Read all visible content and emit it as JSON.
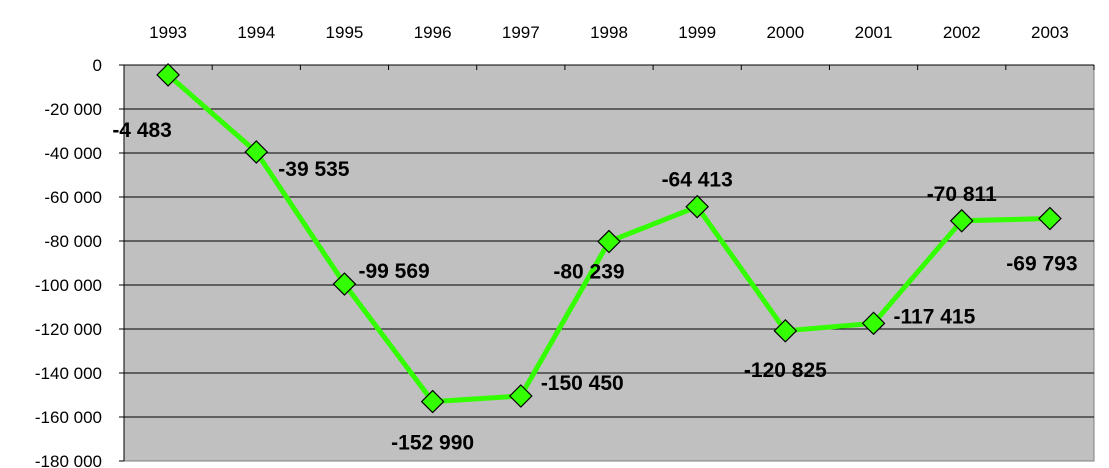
{
  "chart_data": {
    "type": "line",
    "title": "",
    "xlabel": "",
    "ylabel": "",
    "categories": [
      "1993",
      "1994",
      "1995",
      "1996",
      "1997",
      "1998",
      "1999",
      "2000",
      "2001",
      "2002",
      "2003"
    ],
    "series": [
      {
        "values": [
          -4483,
          -39535,
          -99569,
          -152990,
          -150450,
          -80239,
          -64413,
          -120825,
          -117415,
          -70811,
          -69793
        ],
        "color": "#33ff00",
        "marker": "diamond",
        "marker_color": "#33ff00"
      }
    ],
    "data_labels": [
      "-4 483",
      "-39 535",
      "-99 569",
      "-152 990",
      "-150 450",
      "-80 239",
      "-64 413",
      "-120 825",
      "-117 415",
      "-70 811",
      "-69 793"
    ],
    "y_tick_labels": [
      "0",
      "-20 000",
      "-40 000",
      "-60 000",
      "-80 000",
      "-100 000",
      "-120 000",
      "-140 000",
      "-160 000",
      "-180 000"
    ],
    "ylim": [
      -180000,
      0
    ],
    "y_tick_step": 20000,
    "x_axis_position": "top",
    "grid": true,
    "legend": "none",
    "plot_background": "#c0c0c0",
    "gridline_color": "#000000"
  }
}
